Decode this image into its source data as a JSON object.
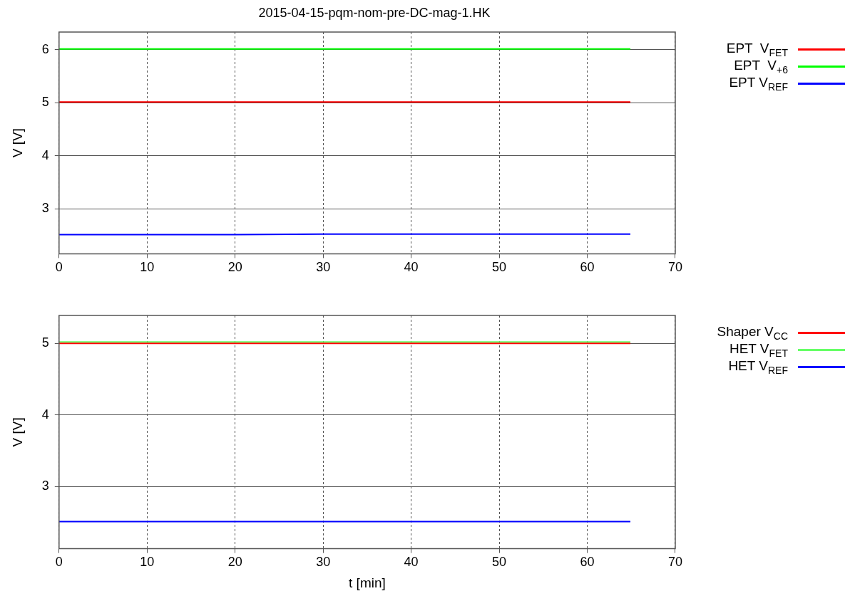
{
  "chart_data": [
    {
      "type": "line",
      "title": "2015-04-15-pqm-nom-pre-DC-mag-1.HK",
      "ylabel": "V [V]",
      "x": [
        0,
        10,
        20,
        30,
        40,
        50,
        60,
        64.9
      ],
      "series": [
        {
          "name": "EPT  V$_{FET}$",
          "color": "#ff0000",
          "values": [
            5.01,
            5.01,
            5.01,
            5.01,
            5.01,
            5.01,
            5.01,
            5.01
          ]
        },
        {
          "name": "EPT  V$_{+6}$",
          "color": "#00ff00",
          "values": [
            6.01,
            6.01,
            6.01,
            6.01,
            6.01,
            6.01,
            6.01,
            6.01
          ]
        },
        {
          "name": "EPT V$_{REF}$",
          "color": "#0000ff",
          "values": [
            2.51,
            2.51,
            2.51,
            2.52,
            2.52,
            2.52,
            2.52,
            2.52
          ]
        }
      ],
      "xlim": [
        0,
        70
      ],
      "xticks": [
        0,
        10,
        20,
        30,
        40,
        50,
        60,
        70
      ],
      "ylim": [
        2.15,
        6.33
      ],
      "yticks": [
        3,
        4,
        5,
        6
      ],
      "grid": true,
      "legend": "top right",
      "marker": "none",
      "line_style": "solid"
    },
    {
      "type": "line",
      "xlabel": "t [min]",
      "ylabel": "V [V]",
      "x": [
        0,
        10,
        20,
        30,
        40,
        50,
        60,
        64.9
      ],
      "series": [
        {
          "name": "Shaper V$_{CC}$",
          "color": "#ff0000",
          "values": [
            5.0,
            5.0,
            5.0,
            5.0,
            5.0,
            5.0,
            5.0,
            5.0
          ]
        },
        {
          "name": "HET V$_{FET}$",
          "color": "#66ff66",
          "values": [
            5.02,
            5.02,
            5.02,
            5.02,
            5.02,
            5.02,
            5.02,
            5.02
          ]
        },
        {
          "name": "HET V$_{REF}$",
          "color": "#0000ff",
          "values": [
            2.51,
            2.51,
            2.51,
            2.51,
            2.51,
            2.51,
            2.51,
            2.51
          ]
        }
      ],
      "xlim": [
        0,
        70
      ],
      "xticks": [
        0,
        10,
        20,
        30,
        40,
        50,
        60,
        70
      ],
      "ylim": [
        2.13,
        5.39
      ],
      "yticks": [
        3,
        4,
        5
      ],
      "grid": true,
      "legend": "top right",
      "marker": "none",
      "line_style": "solid"
    }
  ]
}
